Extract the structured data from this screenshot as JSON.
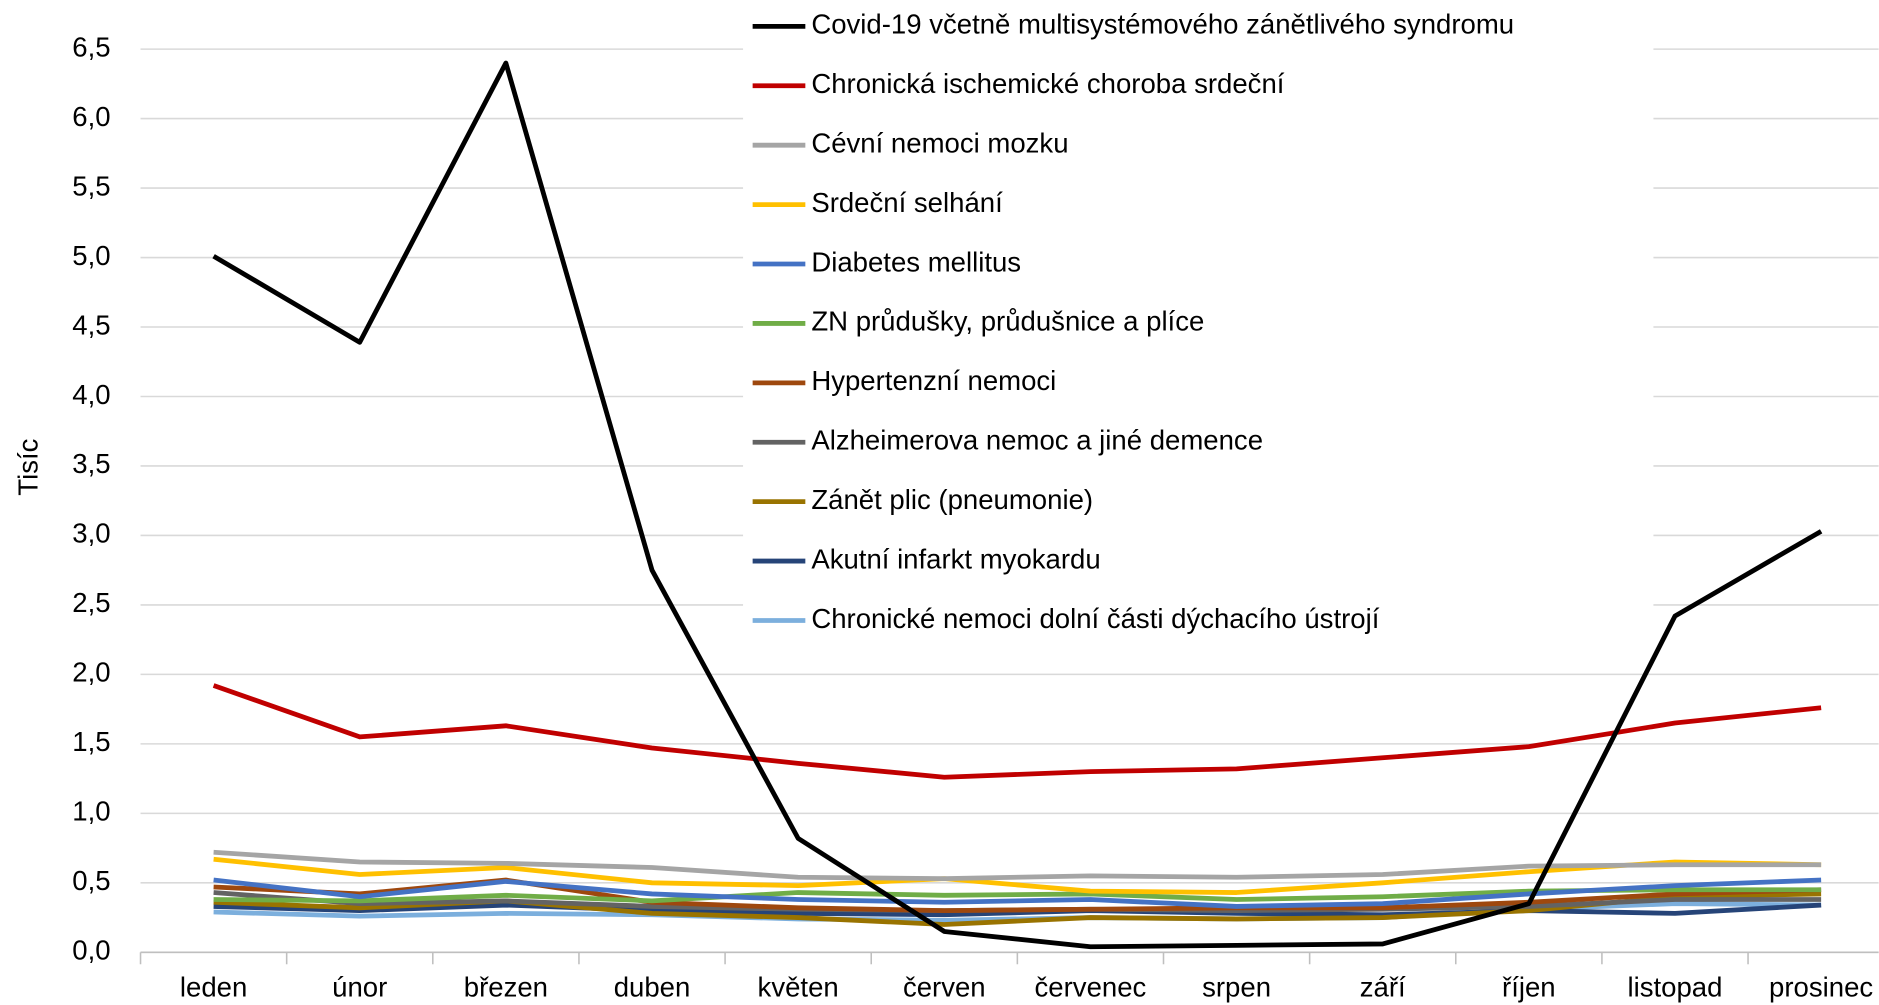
{
  "chart_data": {
    "type": "line",
    "y_label": "Tisíc",
    "categories": [
      "leden",
      "únor",
      "březen",
      "duben",
      "květen",
      "červen",
      "červenec",
      "srpen",
      "září",
      "říjen",
      "listopad",
      "prosinec"
    ],
    "ylim": [
      0,
      6.5
    ],
    "yticks": [
      {
        "value": 0,
        "label": "0,0"
      },
      {
        "value": 0.5,
        "label": "0,5"
      },
      {
        "value": 1,
        "label": "1,0"
      },
      {
        "value": 1.5,
        "label": "1,5"
      },
      {
        "value": 2,
        "label": "2,0"
      },
      {
        "value": 2.5,
        "label": "2,5"
      },
      {
        "value": 3,
        "label": "3,0"
      },
      {
        "value": 3.5,
        "label": "3,5"
      },
      {
        "value": 4,
        "label": "4,0"
      },
      {
        "value": 4.5,
        "label": "4,5"
      },
      {
        "value": 5,
        "label": "5,0"
      },
      {
        "value": 5.5,
        "label": "5,5"
      },
      {
        "value": 6,
        "label": "6,0"
      },
      {
        "value": 6.5,
        "label": "6,5"
      }
    ],
    "grid": true,
    "legend": "top",
    "series": [
      {
        "name": "Covid-19 včetně multisystémového zánětlivého syndromu",
        "color": "#000000",
        "values": [
          5.01,
          4.39,
          6.4,
          2.75,
          0.82,
          0.15,
          0.04,
          0.05,
          0.06,
          0.35,
          2.42,
          3.03
        ]
      },
      {
        "name": "Chronická ischemické choroba srdeční",
        "color": "#c00000",
        "values": [
          1.92,
          1.55,
          1.63,
          1.47,
          1.36,
          1.26,
          1.3,
          1.32,
          1.4,
          1.48,
          1.65,
          1.76
        ]
      },
      {
        "name": "Cévní nemoci mozku",
        "color": "#a5a5a5",
        "values": [
          0.72,
          0.65,
          0.64,
          0.61,
          0.54,
          0.53,
          0.55,
          0.54,
          0.56,
          0.62,
          0.63,
          0.63
        ]
      },
      {
        "name": "Srdeční selhání",
        "color": "#ffc000",
        "values": [
          0.67,
          0.56,
          0.61,
          0.5,
          0.48,
          0.53,
          0.44,
          0.43,
          0.5,
          0.58,
          0.65,
          0.63
        ]
      },
      {
        "name": "Diabetes mellitus",
        "color": "#4472c4",
        "values": [
          0.52,
          0.4,
          0.51,
          0.42,
          0.38,
          0.36,
          0.38,
          0.33,
          0.35,
          0.42,
          0.48,
          0.52
        ]
      },
      {
        "name": "ZN průdušky, průdušnice a plíce",
        "color": "#70ad47",
        "values": [
          0.38,
          0.37,
          0.41,
          0.37,
          0.43,
          0.41,
          0.42,
          0.38,
          0.4,
          0.44,
          0.45,
          0.45
        ]
      },
      {
        "name": "Hypertenzní nemoci",
        "color": "#9e480e",
        "values": [
          0.47,
          0.42,
          0.52,
          0.36,
          0.32,
          0.3,
          0.31,
          0.32,
          0.32,
          0.36,
          0.42,
          0.45
        ]
      },
      {
        "name": "Alzheimerova nemoc a jiné demence",
        "color": "#636363",
        "values": [
          0.43,
          0.35,
          0.37,
          0.33,
          0.31,
          0.3,
          0.31,
          0.3,
          0.31,
          0.33,
          0.38,
          0.38
        ]
      },
      {
        "name": "Zánět plic (pneumonie)",
        "color": "#997300",
        "values": [
          0.36,
          0.32,
          0.37,
          0.28,
          0.25,
          0.2,
          0.25,
          0.24,
          0.25,
          0.3,
          0.4,
          0.42
        ]
      },
      {
        "name": "Akutní infarkt myokardu",
        "color": "#264478",
        "values": [
          0.33,
          0.3,
          0.34,
          0.3,
          0.28,
          0.27,
          0.3,
          0.28,
          0.27,
          0.3,
          0.28,
          0.34
        ]
      },
      {
        "name": "Chronické nemoci dolní části dýchacího ústrojí",
        "color": "#7cafdd",
        "values": [
          0.29,
          0.26,
          0.28,
          0.27,
          0.24,
          0.23,
          0.25,
          0.24,
          0.25,
          0.31,
          0.35,
          0.34
        ]
      }
    ]
  }
}
